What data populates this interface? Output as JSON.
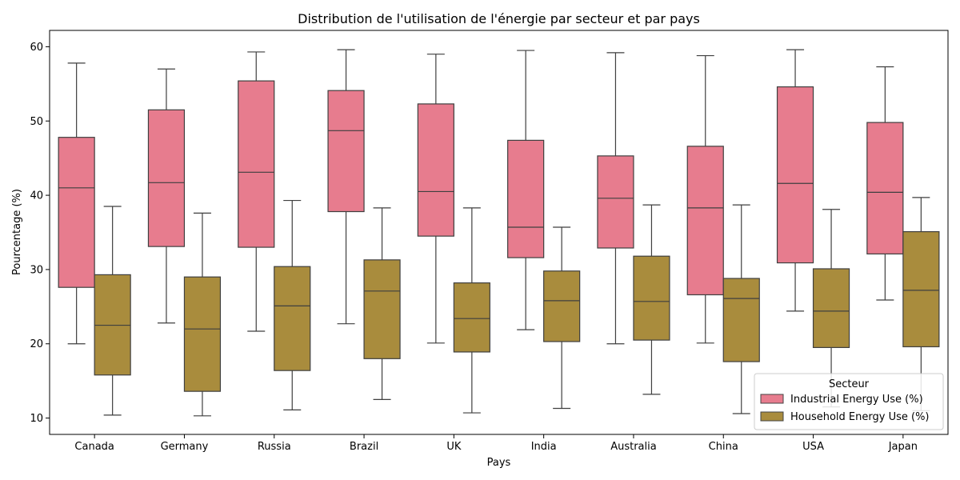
{
  "chart_data": {
    "type": "box",
    "title": "Distribution de l'utilisation de l'énergie par secteur et par pays",
    "xlabel": "Pays",
    "ylabel": "Pourcentage (%)",
    "ylim": [
      7.8,
      62.2
    ],
    "yticks": [
      10,
      20,
      30,
      40,
      50,
      60
    ],
    "grid": false,
    "legend": {
      "title": "Secteur",
      "placement": "lower-right"
    },
    "categories": [
      "Canada",
      "Germany",
      "Russia",
      "Brazil",
      "UK",
      "India",
      "Australia",
      "China",
      "USA",
      "Japan"
    ],
    "series": [
      {
        "name": "Industrial Energy Use (%)",
        "color": "#e77c8e",
        "boxes": [
          {
            "min": 20.0,
            "q1": 27.6,
            "median": 41.0,
            "q3": 47.8,
            "max": 57.8
          },
          {
            "min": 22.8,
            "q1": 33.1,
            "median": 41.7,
            "q3": 51.5,
            "max": 57.0
          },
          {
            "min": 21.7,
            "q1": 33.0,
            "median": 43.1,
            "q3": 55.4,
            "max": 59.3
          },
          {
            "min": 22.7,
            "q1": 37.8,
            "median": 48.7,
            "q3": 54.1,
            "max": 59.6
          },
          {
            "min": 20.1,
            "q1": 34.5,
            "median": 40.5,
            "q3": 52.3,
            "max": 59.0
          },
          {
            "min": 21.9,
            "q1": 31.6,
            "median": 35.7,
            "q3": 47.4,
            "max": 59.5
          },
          {
            "min": 20.0,
            "q1": 32.9,
            "median": 39.6,
            "q3": 45.3,
            "max": 59.2
          },
          {
            "min": 20.1,
            "q1": 26.6,
            "median": 38.3,
            "q3": 46.6,
            "max": 58.8
          },
          {
            "min": 24.4,
            "q1": 30.9,
            "median": 41.6,
            "q3": 54.6,
            "max": 59.6
          },
          {
            "min": 25.9,
            "q1": 32.1,
            "median": 40.4,
            "q3": 49.8,
            "max": 57.3
          }
        ]
      },
      {
        "name": "Household Energy Use (%)",
        "color": "#a98c3d",
        "boxes": [
          {
            "min": 10.4,
            "q1": 15.8,
            "median": 22.5,
            "q3": 29.3,
            "max": 38.5
          },
          {
            "min": 10.3,
            "q1": 13.6,
            "median": 22.0,
            "q3": 29.0,
            "max": 37.6
          },
          {
            "min": 11.1,
            "q1": 16.4,
            "median": 25.1,
            "q3": 30.4,
            "max": 39.3
          },
          {
            "min": 12.5,
            "q1": 18.0,
            "median": 27.1,
            "q3": 31.3,
            "max": 38.3
          },
          {
            "min": 10.7,
            "q1": 18.9,
            "median": 23.4,
            "q3": 28.2,
            "max": 38.3
          },
          {
            "min": 11.3,
            "q1": 20.3,
            "median": 25.8,
            "q3": 29.8,
            "max": 35.7
          },
          {
            "min": 13.2,
            "q1": 20.5,
            "median": 25.7,
            "q3": 31.8,
            "max": 38.7
          },
          {
            "min": 10.6,
            "q1": 17.6,
            "median": 26.1,
            "q3": 28.8,
            "max": 38.7
          },
          {
            "min": 11.5,
            "q1": 19.5,
            "median": 24.4,
            "q3": 30.1,
            "max": 38.1
          },
          {
            "min": 11.0,
            "q1": 19.6,
            "median": 27.2,
            "q3": 35.1,
            "max": 39.7
          }
        ]
      }
    ]
  }
}
